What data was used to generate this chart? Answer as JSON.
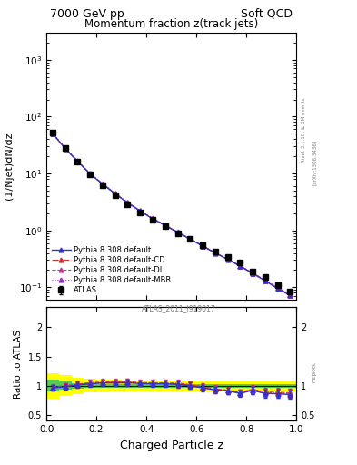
{
  "title_top": "7000 GeV pp",
  "title_right": "Soft QCD",
  "main_title": "Momentum fraction z(track jets)",
  "ylabel_main": "(1/Njet)dN/dz",
  "ylabel_ratio": "Ratio to ATLAS",
  "xlabel": "Charged Particle z",
  "watermark": "ATLAS_2011_I919017",
  "rivet_label": "Rivet 3.1.10, ≥ 3M events",
  "arxiv_label": "[arXiv:1306.3436]",
  "mcplots_label": "mcplots.",
  "z_values": [
    0.025,
    0.075,
    0.125,
    0.175,
    0.225,
    0.275,
    0.325,
    0.375,
    0.425,
    0.475,
    0.525,
    0.575,
    0.625,
    0.675,
    0.725,
    0.775,
    0.825,
    0.875,
    0.925,
    0.975
  ],
  "atlas_y": [
    52.0,
    28.0,
    16.0,
    9.5,
    6.2,
    4.2,
    2.9,
    2.1,
    1.55,
    1.18,
    0.9,
    0.7,
    0.55,
    0.43,
    0.34,
    0.27,
    0.19,
    0.15,
    0.11,
    0.085
  ],
  "atlas_yerr": [
    2.5,
    1.4,
    0.8,
    0.5,
    0.3,
    0.2,
    0.15,
    0.1,
    0.08,
    0.06,
    0.05,
    0.04,
    0.03,
    0.025,
    0.02,
    0.015,
    0.012,
    0.01,
    0.008,
    0.006
  ],
  "pythia_default_y": [
    50.0,
    27.5,
    16.2,
    9.8,
    6.5,
    4.4,
    3.05,
    2.18,
    1.6,
    1.22,
    0.92,
    0.7,
    0.53,
    0.4,
    0.31,
    0.235,
    0.175,
    0.13,
    0.095,
    0.072
  ],
  "pythia_cd_y": [
    50.5,
    27.8,
    16.4,
    9.9,
    6.55,
    4.45,
    3.08,
    2.2,
    1.62,
    1.23,
    0.93,
    0.71,
    0.535,
    0.405,
    0.312,
    0.237,
    0.178,
    0.133,
    0.097,
    0.074
  ],
  "pythia_dl_y": [
    50.8,
    28.0,
    16.5,
    10.0,
    6.6,
    4.48,
    3.1,
    2.22,
    1.63,
    1.24,
    0.94,
    0.715,
    0.54,
    0.408,
    0.315,
    0.239,
    0.179,
    0.134,
    0.098,
    0.075
  ],
  "pythia_mbr_y": [
    50.2,
    27.6,
    16.3,
    9.85,
    6.52,
    4.42,
    3.06,
    2.19,
    1.61,
    1.225,
    0.925,
    0.705,
    0.532,
    0.402,
    0.311,
    0.236,
    0.176,
    0.132,
    0.096,
    0.073
  ],
  "color_default": "#3333cc",
  "color_cd": "#cc3333",
  "color_dl": "#cc3399",
  "color_mbr": "#9933cc",
  "band_green_lo": [
    0.9,
    0.93,
    0.95,
    0.96,
    0.97,
    0.97,
    0.97,
    0.97,
    0.97,
    0.97,
    0.97,
    0.97,
    0.97,
    0.97,
    0.97,
    0.97,
    0.97,
    0.97,
    0.97,
    0.97
  ],
  "band_green_hi": [
    1.1,
    1.07,
    1.05,
    1.04,
    1.03,
    1.03,
    1.03,
    1.03,
    1.03,
    1.03,
    1.03,
    1.03,
    1.03,
    1.03,
    1.03,
    1.03,
    1.03,
    1.03,
    1.03,
    1.03
  ],
  "band_yellow_lo": [
    0.78,
    0.82,
    0.86,
    0.88,
    0.89,
    0.9,
    0.91,
    0.91,
    0.91,
    0.91,
    0.91,
    0.91,
    0.91,
    0.91,
    0.91,
    0.91,
    0.91,
    0.91,
    0.91,
    0.91
  ],
  "band_yellow_hi": [
    1.22,
    1.18,
    1.14,
    1.12,
    1.11,
    1.1,
    1.09,
    1.09,
    1.09,
    1.09,
    1.09,
    1.09,
    1.09,
    1.09,
    1.09,
    1.09,
    1.09,
    1.09,
    1.09,
    1.09
  ],
  "ratio_default": [
    0.962,
    0.982,
    1.012,
    1.032,
    1.048,
    1.048,
    1.052,
    1.038,
    1.032,
    1.034,
    1.022,
    1.0,
    0.964,
    0.93,
    0.912,
    0.87,
    0.921,
    0.867,
    0.864,
    0.847
  ],
  "ratio_cd": [
    0.971,
    0.993,
    1.025,
    1.042,
    1.056,
    1.06,
    1.062,
    1.048,
    1.045,
    1.042,
    1.033,
    1.014,
    0.973,
    0.942,
    0.918,
    0.878,
    0.937,
    0.887,
    0.882,
    0.871
  ],
  "ratio_dl": [
    0.977,
    1.0,
    1.031,
    1.053,
    1.065,
    1.067,
    1.069,
    1.057,
    1.052,
    1.051,
    1.044,
    1.021,
    0.982,
    0.949,
    0.926,
    0.885,
    0.942,
    0.893,
    0.891,
    0.882
  ],
  "ratio_mbr": [
    0.965,
    0.986,
    1.019,
    1.037,
    1.052,
    1.052,
    1.055,
    1.043,
    1.039,
    1.038,
    1.028,
    1.007,
    0.967,
    0.935,
    0.915,
    0.874,
    0.926,
    0.88,
    0.873,
    0.859
  ],
  "ratio_err": [
    0.048,
    0.05,
    0.05,
    0.053,
    0.048,
    0.048,
    0.052,
    0.048,
    0.052,
    0.051,
    0.056,
    0.057,
    0.055,
    0.058,
    0.059,
    0.056,
    0.063,
    0.067,
    0.073,
    0.071
  ],
  "ylim_main_lo": 0.06,
  "ylim_main_hi": 3000,
  "ylim_ratio_lo": 0.4,
  "ylim_ratio_hi": 2.35,
  "xlim_lo": 0.0,
  "xlim_hi": 1.0
}
